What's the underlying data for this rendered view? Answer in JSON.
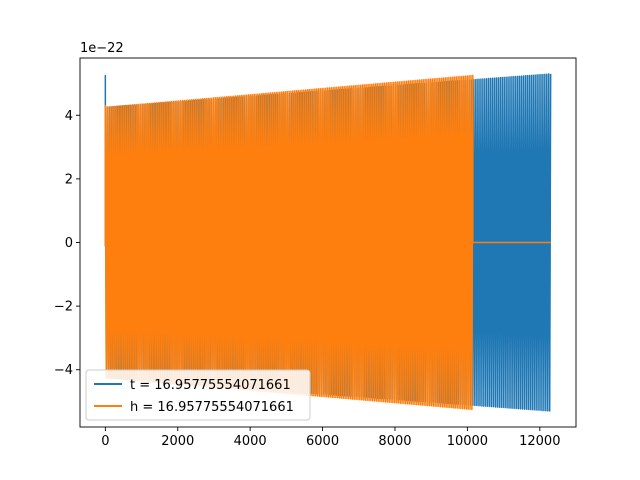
{
  "chart_data": {
    "type": "line",
    "title": "",
    "xlabel": "",
    "ylabel": "",
    "y_offset_label": "1e−22",
    "xlim": [
      -700,
      13000
    ],
    "ylim": [
      -5.8,
      5.8
    ],
    "x_ticks": [
      0,
      2000,
      4000,
      6000,
      8000,
      10000,
      12000
    ],
    "y_ticks": [
      -4,
      -2,
      0,
      2,
      4
    ],
    "x_tick_labels": [
      "0",
      "2000",
      "4000",
      "6000",
      "8000",
      "10000",
      "12000"
    ],
    "y_tick_labels": [
      "−4",
      "−2",
      "0",
      "2",
      "4"
    ],
    "grid": false,
    "legend_position": "lower-left",
    "series": [
      {
        "name": "t = 16.95775554071661",
        "color": "#1f77b4",
        "x_start": 0,
        "x_end": 12300,
        "amplitude_start": 4.25,
        "amplitude_end": 5.3,
        "initial_spike": 5.25,
        "cycles": 230
      },
      {
        "name": "h = 16.95775554071661",
        "color": "#ff7f0e",
        "x_start": 0,
        "x_end": 10150,
        "amplitude_start": 4.25,
        "amplitude_end": 5.25,
        "initial_spike": 4.3,
        "cycles": 200,
        "flat_after_end_until": 12300,
        "flat_value": 0
      }
    ]
  }
}
